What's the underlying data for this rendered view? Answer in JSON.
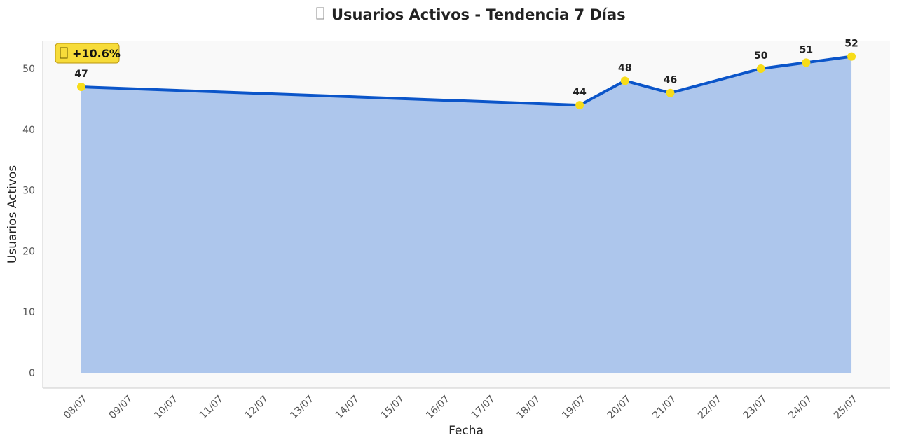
{
  "chart_data": {
    "type": "area",
    "title_icon": "chart-icon",
    "title": "Usuarios Activos - Tendencia 7 Días",
    "xlabel": "Fecha",
    "ylabel": "Usuarios Activos",
    "ylim": [
      0,
      55
    ],
    "y_ticks": [
      0,
      10,
      20,
      30,
      40,
      50
    ],
    "x_ticks": [
      "08/07",
      "09/07",
      "10/07",
      "11/07",
      "12/07",
      "13/07",
      "14/07",
      "15/07",
      "16/07",
      "17/07",
      "18/07",
      "19/07",
      "20/07",
      "21/07",
      "22/07",
      "23/07",
      "24/07",
      "25/07"
    ],
    "points": [
      {
        "x": "08/07",
        "y": 47
      },
      {
        "x": "19/07",
        "y": 44
      },
      {
        "x": "20/07",
        "y": 48
      },
      {
        "x": "21/07",
        "y": 46
      },
      {
        "x": "23/07",
        "y": 50
      },
      {
        "x": "24/07",
        "y": 51
      },
      {
        "x": "25/07",
        "y": 52
      }
    ],
    "grid": false,
    "badge": {
      "icon": "trend-up-icon",
      "text": "+10.6%"
    },
    "colors": {
      "line": "#0b55c9",
      "fill": "#adc6ec",
      "marker": "#f7dc19",
      "plot_bg": "#f9f9f9",
      "badge_bg": "#f7dc3a",
      "badge_border": "#b8950f"
    }
  }
}
